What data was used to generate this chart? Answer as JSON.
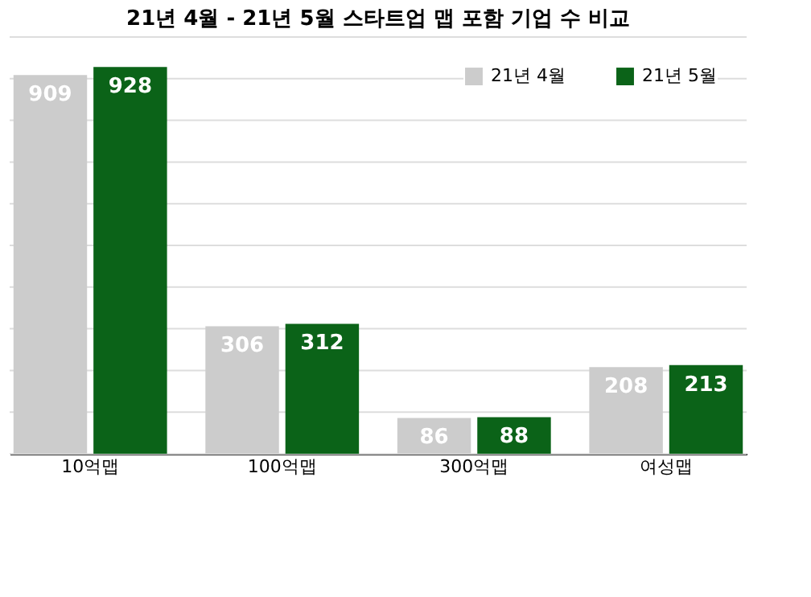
{
  "chart_data": {
    "type": "bar",
    "title": "21년 4월 - 21년 5월 스타트업 맵 포함 기업 수 비교",
    "categories": [
      "10억맵",
      "100억맵",
      "300억맵",
      "여성맵"
    ],
    "series": [
      {
        "name": "21년 4월",
        "color": "#cccccc",
        "values": [
          909,
          306,
          86,
          208
        ]
      },
      {
        "name": "21년 5월",
        "color": "#0b6318",
        "values": [
          928,
          312,
          88,
          213
        ]
      }
    ],
    "ylim": [
      0,
      1000
    ],
    "yticks": [
      {
        "value": 0,
        "label": null
      },
      {
        "value": 100,
        "label": null
      },
      {
        "value": 200,
        "label": null
      },
      {
        "value": 300,
        "label": null
      },
      {
        "value": 400,
        "label": null
      },
      {
        "value": 500,
        "label": null
      },
      {
        "value": 600,
        "label": null
      },
      {
        "value": 700,
        "label": null
      },
      {
        "value": 800,
        "label": null
      },
      {
        "value": 900,
        "label": null
      },
      {
        "value": 1000,
        "label": null
      }
    ],
    "tick_labels": "x",
    "grid": "y",
    "legend": "top right",
    "data_labels": true
  }
}
